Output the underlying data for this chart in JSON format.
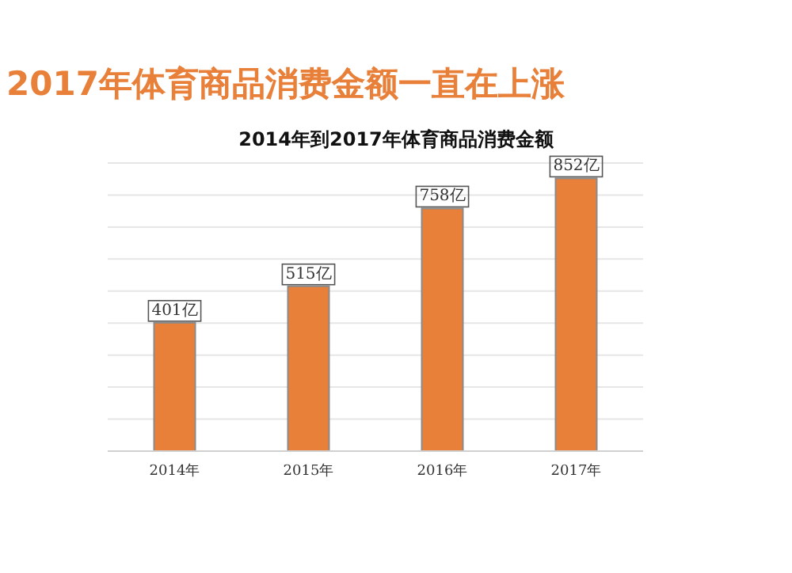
{
  "chart_data": {
    "type": "bar",
    "title": "2017年体育商品消费金额一直在上涨",
    "subtitle": "2014年到2017年体育商品消费金额",
    "categories": [
      "2014年",
      "2015年",
      "2016年",
      "2017年"
    ],
    "values": [
      401,
      515,
      758,
      852
    ],
    "value_labels": [
      "401亿",
      "515亿",
      "758亿",
      "852亿"
    ],
    "color": "#e8803a",
    "ylim": [
      0,
      900
    ],
    "yticks": [
      {
        "value": 0,
        "label": null
      },
      {
        "value": 100,
        "label": null
      },
      {
        "value": 200,
        "label": null
      },
      {
        "value": 300,
        "label": null
      },
      {
        "value": 400,
        "label": null
      },
      {
        "value": 500,
        "label": null
      },
      {
        "value": 600,
        "label": null
      },
      {
        "value": 700,
        "label": null
      },
      {
        "value": 800,
        "label": null
      },
      {
        "value": 900,
        "label": null
      }
    ],
    "grid": "y",
    "tick_labels": "x"
  }
}
